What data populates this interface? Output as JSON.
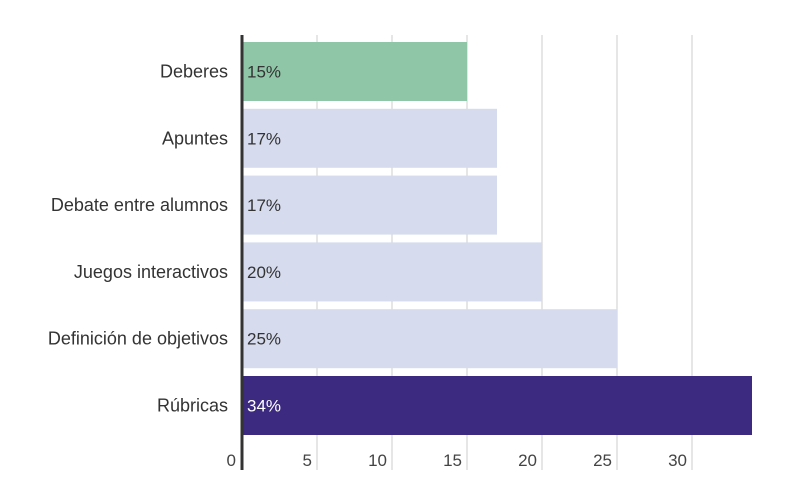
{
  "chart_data": {
    "type": "bar",
    "orientation": "horizontal",
    "categories": [
      "Deberes",
      "Apuntes",
      "Debate entre alumnos",
      "Juegos interactivos",
      "Definición de objetivos",
      "Rúbricas"
    ],
    "values": [
      15,
      17,
      17,
      20,
      25,
      34
    ],
    "value_labels": [
      "15%",
      "17%",
      "17%",
      "20%",
      "25%",
      "34%"
    ],
    "x_ticks": [
      0,
      5,
      10,
      15,
      20,
      25,
      30
    ],
    "xlim": [
      0,
      35
    ],
    "grid": true,
    "colors": [
      "#8fc6a7",
      "#d6dbee",
      "#d6dbee",
      "#d6dbee",
      "#d6dbee",
      "#3b2a80"
    ],
    "label_colors": [
      "#333333",
      "#333333",
      "#333333",
      "#333333",
      "#333333",
      "#ffffff"
    ],
    "grid_color": "#cccccc",
    "axis_color": "#333333"
  }
}
